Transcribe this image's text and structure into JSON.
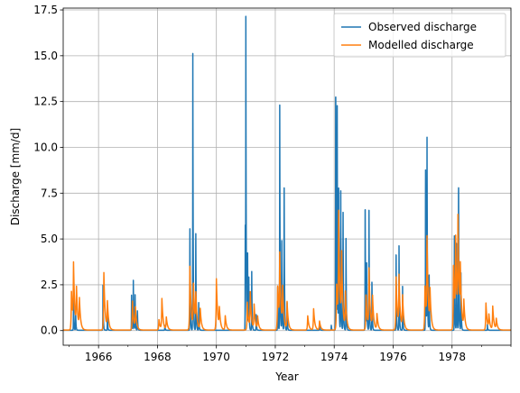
{
  "chart_data": {
    "type": "line",
    "title": "",
    "xlabel": "Year",
    "ylabel": "Discharge [mm/d]",
    "xlim": [
      1964.8,
      1980.0
    ],
    "ylim": [
      -0.8,
      17.6
    ],
    "grid": true,
    "legend_position": "top-right",
    "x_ticks": [
      1966,
      1968,
      1970,
      1972,
      1974,
      1976,
      1978
    ],
    "x_tick_labels": [
      "1966",
      "1968",
      "1970",
      "1972",
      "1974",
      "1976",
      "1978"
    ],
    "y_ticks": [
      0.0,
      2.5,
      5.0,
      7.5,
      10.0,
      12.5,
      15.0,
      17.5
    ],
    "y_tick_labels": [
      "0.0",
      "2.5",
      "5.0",
      "7.5",
      "10.0",
      "12.5",
      "15.0",
      "17.5"
    ],
    "series": [
      {
        "name": "Observed discharge",
        "color": "#1f77b4",
        "events": [
          {
            "year": 1965,
            "peaks": [
              [
                0.15,
                1.8
              ],
              [
                0.22,
                1.2
              ]
            ]
          },
          {
            "year": 1966,
            "peaks": [
              [
                0.15,
                2.6
              ],
              [
                0.3,
                0.9
              ]
            ]
          },
          {
            "year": 1967,
            "peaks": [
              [
                0.12,
                2.0
              ],
              [
                0.18,
                2.9
              ],
              [
                0.24,
                2.1
              ],
              [
                0.32,
                1.1
              ]
            ]
          },
          {
            "year": 1968,
            "peaks": [
              [
                0.25,
                0.3
              ]
            ]
          },
          {
            "year": 1969,
            "peaks": [
              [
                0.1,
                6.2
              ],
              [
                0.2,
                15.1
              ],
              [
                0.3,
                5.9
              ],
              [
                0.4,
                1.5
              ]
            ]
          },
          {
            "year": 1970,
            "peaks": [
              [
                0.98,
                6.0
              ],
              [
                1.0,
                16.0
              ],
              [
                1.06,
                4.2
              ],
              [
                1.2,
                1.2
              ]
            ]
          },
          {
            "year": 1971,
            "peaks": [
              [
                0.1,
                3.1
              ],
              [
                0.2,
                2.0
              ],
              [
                0.35,
                0.9
              ]
            ]
          },
          {
            "year": 1972,
            "peaks": [
              [
                0.08,
                2.7
              ],
              [
                0.15,
                13.0
              ],
              [
                0.22,
                5.7
              ],
              [
                0.3,
                8.7
              ],
              [
                0.4,
                1.5
              ]
            ]
          },
          {
            "year": 1973,
            "peaks": [
              [
                0.5,
                0.4
              ],
              [
                0.9,
                0.3
              ]
            ]
          },
          {
            "year": 1974,
            "peaks": [
              [
                0.05,
                15.1
              ],
              [
                0.1,
                13.5
              ],
              [
                0.15,
                8.0
              ],
              [
                0.22,
                8.9
              ],
              [
                0.3,
                7.2
              ],
              [
                0.4,
                5.0
              ]
            ]
          },
          {
            "year": 1975,
            "peaks": [
              [
                0.05,
                7.8
              ],
              [
                0.1,
                4.0
              ],
              [
                0.18,
                7.0
              ],
              [
                0.28,
                3.0
              ]
            ]
          },
          {
            "year": 1976,
            "peaks": [
              [
                0.1,
                4.6
              ],
              [
                0.2,
                4.6
              ],
              [
                0.32,
                2.5
              ]
            ]
          },
          {
            "year": 1977,
            "peaks": [
              [
                0.1,
                9.8
              ],
              [
                0.15,
                11.0
              ],
              [
                0.22,
                3.5
              ]
            ]
          },
          {
            "year": 1978,
            "peaks": [
              [
                0.08,
                5.9
              ],
              [
                0.15,
                5.0
              ],
              [
                0.22,
                9.1
              ],
              [
                0.3,
                3.5
              ]
            ]
          },
          {
            "year": 1979,
            "peaks": [
              [
                0.2,
                0.3
              ]
            ]
          }
        ]
      },
      {
        "name": "Modelled discharge",
        "color": "#ff7f0e",
        "events": [
          {
            "year": 1965,
            "peaks": [
              [
                0.08,
                2.2
              ],
              [
                0.15,
                3.4
              ],
              [
                0.25,
                2.2
              ],
              [
                0.35,
                1.6
              ]
            ]
          },
          {
            "year": 1966,
            "peaks": [
              [
                0.18,
                3.2
              ],
              [
                0.3,
                1.5
              ]
            ]
          },
          {
            "year": 1967,
            "peaks": [
              [
                0.15,
                1.6
              ],
              [
                0.25,
                1.2
              ]
            ]
          },
          {
            "year": 1968,
            "peaks": [
              [
                0.05,
                0.6
              ],
              [
                0.15,
                1.7
              ],
              [
                0.3,
                0.7
              ]
            ]
          },
          {
            "year": 1969,
            "peaks": [
              [
                0.1,
                3.6
              ],
              [
                0.22,
                2.5
              ],
              [
                0.3,
                1.8
              ],
              [
                0.45,
                1.2
              ]
            ]
          },
          {
            "year": 1970,
            "peaks": [
              [
                0.0,
                2.8
              ],
              [
                0.1,
                1.1
              ],
              [
                0.3,
                0.8
              ]
            ]
          },
          {
            "year": 1971,
            "peaks": [
              [
                0.05,
                1.6
              ],
              [
                0.15,
                2.0
              ],
              [
                0.28,
                1.4
              ],
              [
                0.4,
                0.7
              ]
            ]
          },
          {
            "year": 1972,
            "peaks": [
              [
                0.08,
                2.5
              ],
              [
                0.15,
                3.9
              ],
              [
                0.25,
                2.2
              ],
              [
                0.4,
                1.5
              ]
            ]
          },
          {
            "year": 1973,
            "peaks": [
              [
                0.1,
                0.8
              ],
              [
                0.3,
                1.2
              ],
              [
                0.5,
                0.5
              ]
            ]
          },
          {
            "year": 1974,
            "peaks": [
              [
                0.08,
                2.6
              ],
              [
                0.15,
                6.2
              ],
              [
                0.25,
                4.0
              ],
              [
                0.38,
                2.0
              ]
            ]
          },
          {
            "year": 1975,
            "peaks": [
              [
                0.08,
                2.0
              ],
              [
                0.18,
                3.3
              ],
              [
                0.3,
                1.8
              ],
              [
                0.45,
                0.9
              ]
            ]
          },
          {
            "year": 1976,
            "peaks": [
              [
                0.1,
                3.0
              ],
              [
                0.2,
                2.8
              ],
              [
                0.32,
                1.8
              ]
            ]
          },
          {
            "year": 1977,
            "peaks": [
              [
                0.08,
                2.5
              ],
              [
                0.15,
                4.8
              ],
              [
                0.25,
                2.0
              ]
            ]
          },
          {
            "year": 1978,
            "peaks": [
              [
                0.05,
                3.7
              ],
              [
                0.12,
                4.6
              ],
              [
                0.2,
                5.6
              ],
              [
                0.28,
                3.0
              ],
              [
                0.4,
                1.5
              ]
            ]
          },
          {
            "year": 1979,
            "peaks": [
              [
                0.15,
                1.5
              ],
              [
                0.25,
                0.8
              ],
              [
                0.38,
                1.3
              ],
              [
                0.5,
                0.6
              ]
            ]
          }
        ]
      }
    ]
  }
}
